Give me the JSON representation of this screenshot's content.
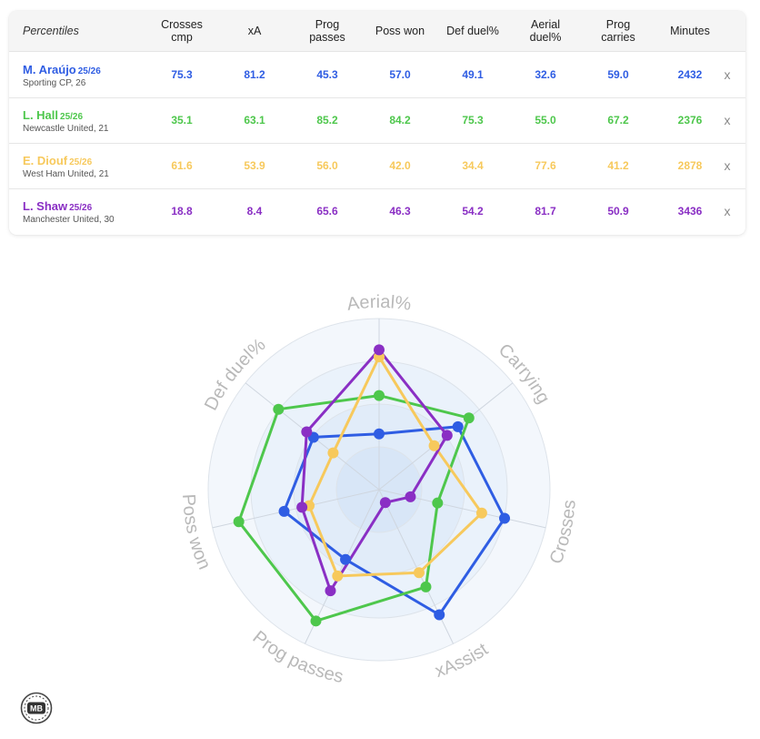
{
  "table": {
    "header_label": "Percentiles",
    "columns": [
      {
        "line1": "Crosses",
        "line2": "cmp"
      },
      {
        "line1": "xA",
        "line2": ""
      },
      {
        "line1": "Prog",
        "line2": "passes"
      },
      {
        "line1": "Poss won",
        "line2": ""
      },
      {
        "line1": "Def duel%",
        "line2": ""
      },
      {
        "line1": "Aerial",
        "line2": "duel%"
      },
      {
        "line1": "Prog",
        "line2": "carries"
      },
      {
        "line1": "Minutes",
        "line2": ""
      }
    ],
    "remove_label": "x",
    "players": [
      {
        "name": "M. Araújo",
        "season": "25/26",
        "club": "Sporting CP, 26",
        "color": "#2f5de3",
        "values": [
          "75.3",
          "81.2",
          "45.3",
          "57.0",
          "49.1",
          "32.6",
          "59.0",
          "2432"
        ]
      },
      {
        "name": "L. Hall",
        "season": "25/26",
        "club": "Newcastle United, 21",
        "color": "#4ec74c",
        "values": [
          "35.1",
          "63.1",
          "85.2",
          "84.2",
          "75.3",
          "55.0",
          "67.2",
          "2376"
        ]
      },
      {
        "name": "E. Diouf",
        "season": "25/26",
        "club": "West Ham United, 21",
        "color": "#f7c95c",
        "values": [
          "61.6",
          "53.9",
          "56.0",
          "42.0",
          "34.4",
          "77.6",
          "41.2",
          "2878"
        ]
      },
      {
        "name": "L. Shaw",
        "season": "25/26",
        "club": "Manchester United, 30",
        "color": "#8a2fc4",
        "values": [
          "18.8",
          "8.4",
          "65.6",
          "46.3",
          "54.2",
          "81.7",
          "50.9",
          "3436"
        ]
      }
    ]
  },
  "chart_data": {
    "type": "radar",
    "axes": [
      "Aerial%",
      "Carrying",
      "Crosses",
      "xAssist",
      "Prog passes",
      "Poss won",
      "Def duel%"
    ],
    "range": [
      0,
      100
    ],
    "rings": 4,
    "series": [
      {
        "name": "M. Araújo",
        "color": "#2f5de3",
        "values": [
          32.6,
          59.0,
          75.3,
          81.2,
          45.3,
          57.0,
          49.1
        ]
      },
      {
        "name": "L. Hall",
        "color": "#4ec74c",
        "values": [
          55.0,
          67.2,
          35.1,
          63.1,
          85.2,
          84.2,
          75.3
        ]
      },
      {
        "name": "E. Diouf",
        "color": "#f7c95c",
        "values": [
          77.6,
          41.2,
          61.6,
          53.9,
          56.0,
          42.0,
          34.4
        ]
      },
      {
        "name": "L. Shaw",
        "color": "#8a2fc4",
        "values": [
          81.7,
          50.9,
          18.8,
          8.4,
          65.6,
          46.3,
          54.2
        ]
      }
    ]
  },
  "logo": {
    "text": "MB"
  }
}
